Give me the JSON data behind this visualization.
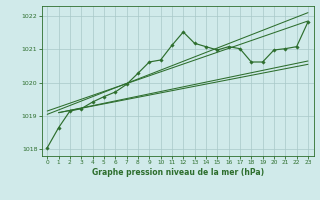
{
  "bg_color": "#d0eaea",
  "grid_color": "#a8c8c8",
  "line_color": "#2d6e2d",
  "marker_color": "#2d6e2d",
  "title": "Graphe pression niveau de la mer (hPa)",
  "ylim": [
    1017.8,
    1022.3
  ],
  "xlim": [
    -0.5,
    23.5
  ],
  "yticks": [
    1018,
    1019,
    1020,
    1021,
    1022
  ],
  "xticks": [
    0,
    1,
    2,
    3,
    4,
    5,
    6,
    7,
    8,
    9,
    10,
    11,
    12,
    13,
    14,
    15,
    16,
    17,
    18,
    19,
    20,
    21,
    22,
    23
  ],
  "main_data": [
    [
      0,
      1018.05
    ],
    [
      1,
      1018.65
    ],
    [
      2,
      1019.15
    ],
    [
      3,
      1019.22
    ],
    [
      4,
      1019.42
    ],
    [
      5,
      1019.58
    ],
    [
      6,
      1019.72
    ],
    [
      7,
      1019.95
    ],
    [
      8,
      1020.28
    ],
    [
      9,
      1020.62
    ],
    [
      10,
      1020.68
    ],
    [
      11,
      1021.12
    ],
    [
      12,
      1021.52
    ],
    [
      13,
      1021.18
    ],
    [
      14,
      1021.08
    ],
    [
      15,
      1020.98
    ],
    [
      16,
      1021.08
    ],
    [
      17,
      1021.02
    ],
    [
      18,
      1020.62
    ],
    [
      19,
      1020.62
    ],
    [
      20,
      1020.98
    ],
    [
      21,
      1021.02
    ],
    [
      22,
      1021.08
    ],
    [
      23,
      1021.82
    ]
  ],
  "trend_line1": [
    [
      0,
      1019.15
    ],
    [
      23,
      1021.85
    ]
  ],
  "trend_line2": [
    [
      0,
      1019.05
    ],
    [
      23,
      1022.1
    ]
  ],
  "trend_line3": [
    [
      1,
      1019.1
    ],
    [
      23,
      1020.55
    ]
  ],
  "trend_line4": [
    [
      1,
      1019.1
    ],
    [
      23,
      1020.65
    ]
  ]
}
